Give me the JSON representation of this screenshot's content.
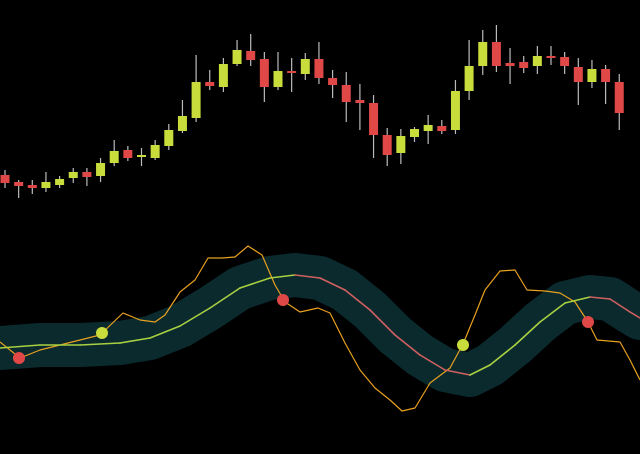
{
  "chart_data": [
    {
      "type": "candlestick",
      "up_color": "#c8dc3c",
      "down_color": "#e04848",
      "wick_color": "#bbbbbb",
      "ylim": [
        0,
        240
      ],
      "open": [
        65,
        58,
        55,
        52,
        55,
        62,
        68,
        64,
        77,
        90,
        83,
        82,
        94,
        109,
        122,
        158,
        153,
        176,
        189,
        181,
        153,
        169,
        166,
        181,
        162,
        155,
        140,
        137,
        105,
        87,
        103,
        109,
        114,
        110,
        149,
        174,
        198,
        177,
        178,
        174,
        184,
        183,
        173,
        158,
        171,
        158
      ],
      "close": [
        57,
        54,
        52,
        58,
        61,
        68,
        63,
        77,
        89,
        82,
        85,
        95,
        110,
        124,
        158,
        154,
        176,
        190,
        180,
        153,
        169,
        167,
        181,
        162,
        155,
        138,
        137,
        105,
        85,
        104,
        111,
        115,
        109,
        149,
        174,
        198,
        174,
        174,
        172,
        184,
        182,
        174,
        158,
        171,
        158,
        127
      ],
      "high": [
        70,
        60,
        60,
        68,
        64,
        72,
        72,
        82,
        100,
        94,
        92,
        100,
        116,
        140,
        185,
        170,
        182,
        200,
        206,
        188,
        188,
        182,
        187,
        198,
        170,
        168,
        156,
        145,
        112,
        111,
        113,
        125,
        120,
        160,
        200,
        210,
        215,
        192,
        184,
        194,
        194,
        188,
        182,
        180,
        175,
        166
      ],
      "low": [
        52,
        42,
        46,
        48,
        52,
        57,
        54,
        58,
        74,
        79,
        74,
        80,
        90,
        107,
        118,
        150,
        148,
        174,
        174,
        138,
        150,
        148,
        160,
        156,
        142,
        118,
        110,
        82,
        74,
        76,
        98,
        96,
        106,
        106,
        140,
        165,
        168,
        156,
        167,
        166,
        175,
        166,
        135,
        152,
        136,
        110
      ]
    },
    {
      "type": "line",
      "xlim": [
        0,
        640
      ],
      "ylim": [
        0,
        214
      ],
      "band_color": "#0a2a2e",
      "series": [
        {
          "color": "#e8a020",
          "x": [
            0,
            20,
            40,
            60,
            80,
            100,
            123,
            140,
            155,
            165,
            180,
            195,
            208,
            222,
            235,
            248,
            262,
            275,
            285,
            300,
            318,
            330,
            345,
            360,
            375,
            390,
            402,
            415,
            430,
            450,
            463,
            475,
            485,
            500,
            515,
            527,
            545,
            560,
            575,
            588,
            597,
            620,
            630,
            640
          ],
          "values": [
            112,
            96,
            104,
            109,
            114,
            119,
            141,
            134,
            132,
            139,
            162,
            174,
            196,
            196,
            197,
            208,
            199,
            169,
            152,
            142,
            146,
            141,
            111,
            84,
            66,
            54,
            43,
            46,
            71,
            86,
            110,
            139,
            164,
            183,
            184,
            164,
            163,
            161,
            152,
            132,
            114,
            112,
            94,
            74
          ]
        },
        {
          "color": "#a8d040",
          "down_color": "#d06060",
          "band": true,
          "x": [
            0,
            40,
            80,
            120,
            150,
            180,
            210,
            240,
            270,
            295,
            320,
            345,
            370,
            395,
            420,
            445,
            470,
            490,
            515,
            540,
            565,
            590,
            610,
            630,
            640
          ],
          "values": [
            106,
            109,
            109,
            111,
            116,
            128,
            146,
            166,
            176,
            179,
            176,
            164,
            144,
            119,
            99,
            84,
            79,
            89,
            109,
            132,
            151,
            157,
            155,
            142,
            136
          ]
        }
      ],
      "markers": {
        "x": [
          19,
          102,
          283,
          463,
          588
        ],
        "values": [
          96,
          121,
          154,
          109,
          132
        ],
        "colors": [
          "#e04848",
          "#c8dc3c",
          "#e04848",
          "#c8dc3c",
          "#e04848"
        ]
      }
    }
  ]
}
